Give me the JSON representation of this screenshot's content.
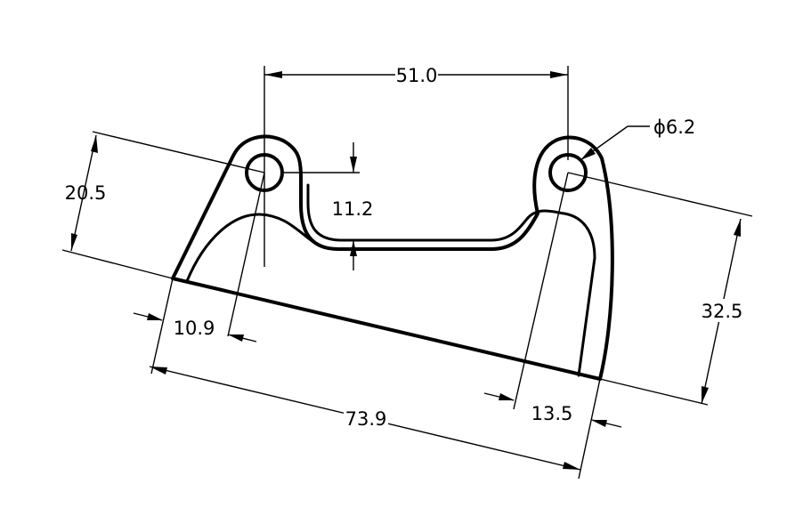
{
  "drawing": {
    "dimensions": {
      "hole_spacing": "51.0",
      "hole_diameter": "ϕ6.2",
      "left_height": "20.5",
      "slot_depth": "11.2",
      "right_height": "32.5",
      "left_offset": "10.9",
      "right_offset": "13.5",
      "overall_length": "73.9"
    },
    "colors": {
      "line": "#000000",
      "background": "#ffffff"
    }
  }
}
